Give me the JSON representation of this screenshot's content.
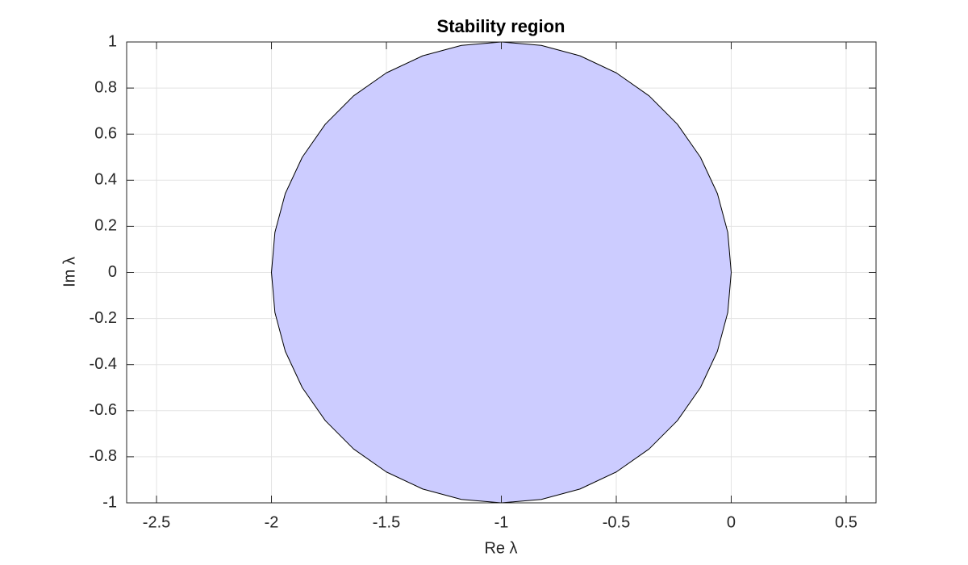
{
  "chart_data": {
    "type": "fill",
    "title": "Stability region",
    "x_label": "Re λ",
    "y_label": "Im λ",
    "x": [
      0,
      -0.015,
      -0.06,
      -0.134,
      -0.234,
      -0.357,
      -0.5,
      -0.658,
      -0.826,
      -1,
      -1.174,
      -1.342,
      -1.5,
      -1.643,
      -1.766,
      -1.866,
      -1.94,
      -1.985,
      -2,
      -1.985,
      -1.94,
      -1.866,
      -1.766,
      -1.643,
      -1.5,
      -1.342,
      -1.174,
      -1,
      -0.826,
      -0.658,
      -0.5,
      -0.357,
      -0.234,
      -0.134,
      -0.06,
      -0.015
    ],
    "y": [
      0,
      0.174,
      0.342,
      0.5,
      0.643,
      0.766,
      0.866,
      0.94,
      0.985,
      1,
      0.985,
      0.94,
      0.866,
      0.766,
      0.643,
      0.5,
      0.342,
      0.174,
      0,
      -0.174,
      -0.342,
      -0.5,
      -0.643,
      -0.766,
      -0.866,
      -0.94,
      -0.985,
      -1,
      -0.985,
      -0.94,
      -0.866,
      -0.766,
      -0.643,
      -0.5,
      -0.342,
      -0.174
    ],
    "color": "#ccccff",
    "edge_color": "#000000",
    "xlim": [
      -2.63,
      0.63
    ],
    "ylim": [
      -1,
      1
    ],
    "xticks": [
      -2.5,
      -2,
      -1.5,
      -1,
      -0.5,
      0,
      0.5
    ],
    "yticks": [
      -1,
      -0.8,
      -0.6,
      -0.4,
      -0.2,
      0,
      0.2,
      0.4,
      0.6,
      0.8,
      1
    ],
    "grid": true
  }
}
